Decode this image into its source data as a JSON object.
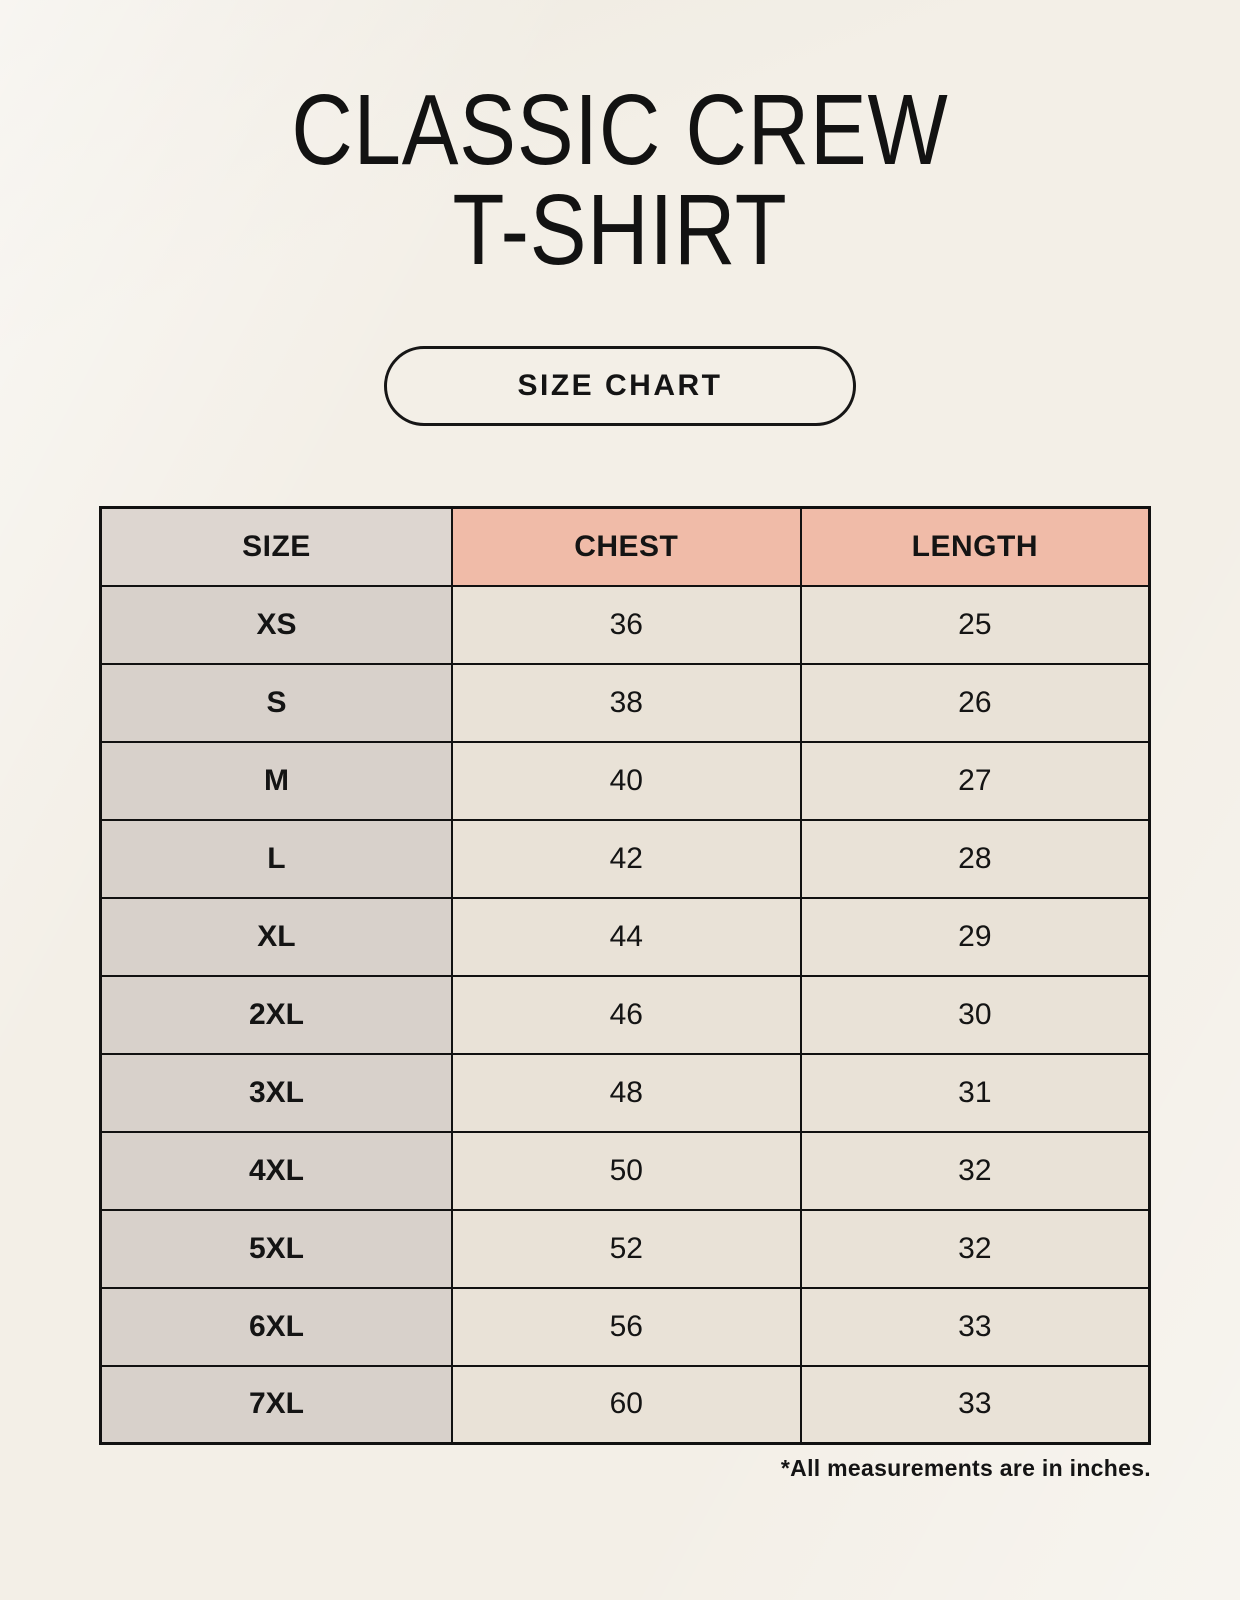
{
  "header": {
    "title_line1": "CLASSIC CREW",
    "title_line2": "T-SHIRT",
    "button_label": "SIZE CHART"
  },
  "footnote": "*All measurements are in inches.",
  "colors": {
    "page_background": "#f3efe7",
    "header_size_bg": "#ddd6d0",
    "header_accent_bg": "#f0bba8",
    "row_label_bg": "#d8d1cb",
    "row_value_bg": "#e9e2d7",
    "border": "#111111",
    "text": "#141414"
  },
  "chart_data": {
    "type": "table",
    "title": "CLASSIC CREW T-SHIRT SIZE CHART",
    "columns": [
      "SIZE",
      "CHEST",
      "LENGTH"
    ],
    "rows": [
      [
        "XS",
        "36",
        "25"
      ],
      [
        "S",
        "38",
        "26"
      ],
      [
        "M",
        "40",
        "27"
      ],
      [
        "L",
        "42",
        "28"
      ],
      [
        "XL",
        "44",
        "29"
      ],
      [
        "2XL",
        "46",
        "30"
      ],
      [
        "3XL",
        "48",
        "31"
      ],
      [
        "4XL",
        "50",
        "32"
      ],
      [
        "5XL",
        "52",
        "32"
      ],
      [
        "6XL",
        "56",
        "33"
      ],
      [
        "7XL",
        "60",
        "33"
      ]
    ],
    "units": "inches"
  }
}
